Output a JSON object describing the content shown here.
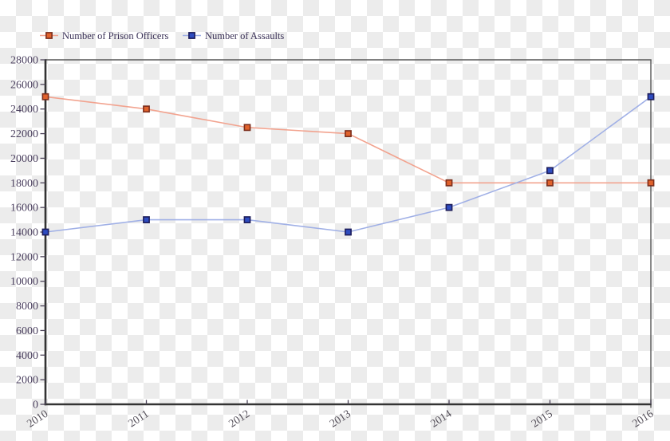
{
  "background": {
    "checker_light": "#ffffff",
    "checker_dark": "#ececec"
  },
  "style": {
    "axis_color": "#333333",
    "border_color": "#575757",
    "tick_color": "#4c4458",
    "y_label_color": "#4a3f5e",
    "x_label_color": "#55505a",
    "legend_text_color": "#3b3258",
    "tick_label_font_size": 14,
    "x_label_rotation": -33
  },
  "chart_data": {
    "type": "line",
    "title": "",
    "xlabel": "",
    "ylabel": "",
    "categories": [
      "2010",
      "2011",
      "2012",
      "2013",
      "2014",
      "2015",
      "2016"
    ],
    "series": [
      {
        "name": "Number of Prison Officers",
        "values": [
          25000,
          24000,
          22500,
          22000,
          18000,
          18000,
          18000
        ],
        "line_color": "#f2a38f",
        "marker_fill": "#e0622c",
        "marker_stroke": "#7b2d1b",
        "marker": "square"
      },
      {
        "name": "Number of Assaults",
        "values": [
          14000,
          15000,
          15000,
          14000,
          16000,
          19000,
          25000
        ],
        "line_color": "#a0b0e6",
        "marker_fill": "#2e4cc0",
        "marker_stroke": "#1c1c5a",
        "marker": "square"
      }
    ],
    "ylim": [
      0,
      28000
    ],
    "y_ticks": [
      0,
      2000,
      4000,
      6000,
      8000,
      10000,
      12000,
      14000,
      16000,
      18000,
      20000,
      22000,
      24000,
      26000,
      28000
    ],
    "grid": false,
    "legend_position": "top-left"
  }
}
